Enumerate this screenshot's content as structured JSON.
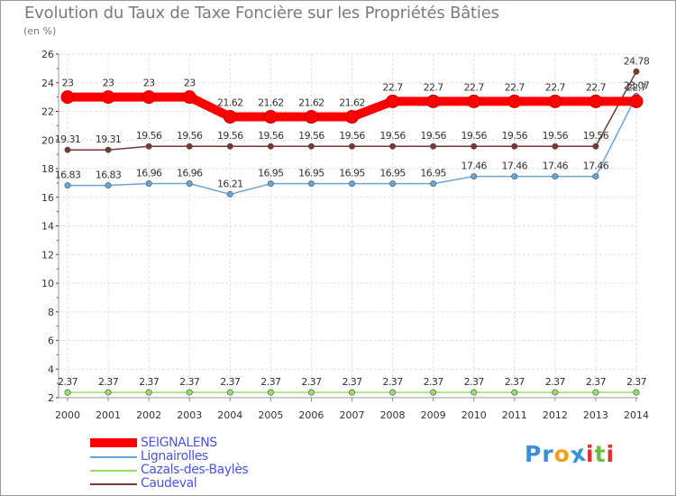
{
  "chart_data": {
    "type": "line",
    "title": "Evolution du Taux de Taxe Foncière sur les Propriétés Bâties",
    "ylabel": "(en %)",
    "xlabel": "",
    "x": [
      "2000",
      "2001",
      "2002",
      "2003",
      "2004",
      "2005",
      "2006",
      "2007",
      "2008",
      "2009",
      "2010",
      "2011",
      "2012",
      "2013",
      "2014"
    ],
    "ylim": [
      2,
      26
    ],
    "yticks": [
      2,
      4,
      6,
      8,
      10,
      12,
      14,
      16,
      18,
      20,
      22,
      24,
      26
    ],
    "grid": true,
    "legend": "bottom-left",
    "series": [
      {
        "name": "SEIGNALENS",
        "color": "#ff0000",
        "values": [
          23,
          23,
          23,
          23,
          21.62,
          21.62,
          21.62,
          21.62,
          22.7,
          22.7,
          22.7,
          22.7,
          22.7,
          22.7,
          22.7
        ],
        "labels": [
          "23",
          "23",
          "23",
          "23",
          "21.62",
          "21.62",
          "21.62",
          "21.62",
          "22.7",
          "22.7",
          "22.7",
          "22.7",
          "22.7",
          "22.7",
          "22.7"
        ]
      },
      {
        "name": "Lignairolles",
        "color": "#6aa3d5",
        "values": [
          16.83,
          16.83,
          16.96,
          16.96,
          16.21,
          16.95,
          16.95,
          16.95,
          16.95,
          16.95,
          17.46,
          17.46,
          17.46,
          17.46,
          23.07
        ],
        "labels": [
          "16.83",
          "16.83",
          "16.96",
          "16.96",
          "16.21",
          "16.95",
          "16.95",
          "16.95",
          "16.95",
          "16.95",
          "17.46",
          "17.46",
          "17.46",
          "17.46",
          "23.07"
        ]
      },
      {
        "name": "Cazals-des-Baylès",
        "color": "#99dd66",
        "values": [
          2.37,
          2.37,
          2.37,
          2.37,
          2.37,
          2.37,
          2.37,
          2.37,
          2.37,
          2.37,
          2.37,
          2.37,
          2.37,
          2.37,
          2.37
        ],
        "labels": [
          "2.37",
          "2.37",
          "2.37",
          "2.37",
          "2.37",
          "2.37",
          "2.37",
          "2.37",
          "2.37",
          "2.37",
          "2.37",
          "2.37",
          "2.37",
          "2.37",
          "2.37"
        ]
      },
      {
        "name": "Caudeval",
        "color": "#7a3535",
        "values": [
          19.31,
          19.31,
          19.56,
          19.56,
          19.56,
          19.56,
          19.56,
          19.56,
          19.56,
          19.56,
          19.56,
          19.56,
          19.56,
          19.56,
          24.78
        ],
        "labels": [
          "19.31",
          "19.31",
          "19.56",
          "19.56",
          "19.56",
          "19.56",
          "19.56",
          "19.56",
          "19.56",
          "19.56",
          "19.56",
          "19.56",
          "19.56",
          "19.56",
          "24.78"
        ]
      }
    ]
  },
  "legend": {
    "items": [
      "SEIGNALENS",
      "Lignairolles",
      "Cazals-des-Baylès",
      "Caudeval"
    ],
    "colors": [
      "#ff0000",
      "#6aa3d5",
      "#99dd66",
      "#7a3535"
    ]
  },
  "logo": {
    "text": "Proxiti",
    "letters": [
      "P",
      "r",
      "o",
      "x",
      "i",
      "t",
      "i"
    ],
    "colors": [
      "#3a8fd8",
      "#3a8fd8",
      "#f0a020",
      "#3a8fd8",
      "#e03030",
      "#6cbd45",
      "#e03030"
    ]
  }
}
